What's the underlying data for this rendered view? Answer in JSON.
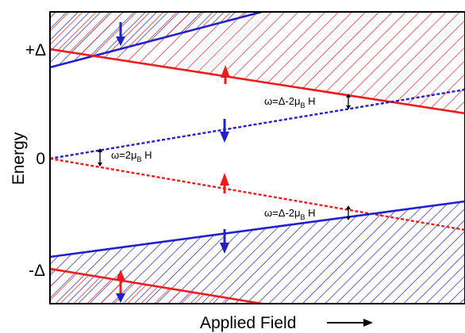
{
  "axes": {
    "ylabel": "Energy",
    "xlabel": "Applied Field",
    "xlabel_arrow": "→",
    "ticks": {
      "plus": "+Δ",
      "zero": "0",
      "minus": "-Δ"
    }
  },
  "annotations": {
    "upper_gap": {
      "omega": "ω=Δ-2μ",
      "sub": "B",
      "tail": " H"
    },
    "middle_gap": {
      "omega": "ω=2μ",
      "sub": "B",
      "tail": " H"
    },
    "lower_gap": {
      "omega": "ω=Δ-2μ",
      "sub": "B",
      "tail": " H"
    }
  },
  "colors": {
    "spin_up": "#ee1c1c",
    "spin_down": "#2020cc",
    "frame": "#000000"
  },
  "spin_symbols": {
    "up": "up-arrow",
    "down": "down-arrow"
  }
}
